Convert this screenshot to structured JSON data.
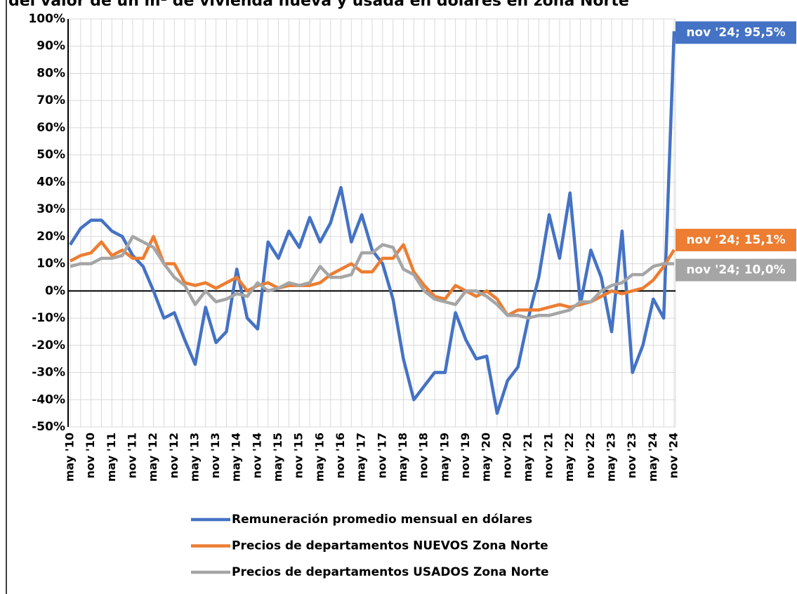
{
  "chart_data": {
    "type": "line",
    "title": "del valor de un m² de vivienda nueva y usada en dólares en zona Norte",
    "categories": [
      "may '10",
      null,
      "nov '10",
      null,
      "may '11",
      null,
      "nov '11",
      null,
      "may '12",
      null,
      "nov '12",
      null,
      "may '13",
      null,
      "nov '13",
      null,
      "may '14",
      null,
      "nov '14",
      null,
      "may '15",
      null,
      "nov '15",
      null,
      "may '16",
      null,
      "nov '16",
      null,
      "may '17",
      null,
      "nov '17",
      null,
      "may '18",
      null,
      "nov '18",
      null,
      "may '19",
      null,
      "nov '19",
      null,
      "may '20",
      null,
      "nov '20",
      null,
      "may '21",
      null,
      "nov '21",
      null,
      "may '22",
      null,
      "nov '22",
      null,
      "may '23",
      null,
      "nov '23",
      null,
      "may '24",
      null,
      "nov '24"
    ],
    "series": [
      {
        "name": "Remuneración promedio mensual en dólares",
        "color": "#4472c4",
        "values": [
          17,
          23,
          26,
          26,
          22,
          20,
          13,
          9,
          0,
          -10,
          -8,
          -18,
          -27,
          -6,
          -19,
          -15,
          8,
          -10,
          -14,
          18,
          12,
          22,
          16,
          27,
          18,
          25,
          38,
          18,
          28,
          15,
          10,
          -3,
          -25,
          -40,
          -35,
          -30,
          -30,
          -8,
          -18,
          -25,
          -24,
          -45,
          -33,
          -28,
          -10,
          5,
          28,
          12,
          36,
          -5,
          15,
          5,
          -15,
          22,
          -30,
          -20,
          -3,
          -10,
          95.5
        ],
        "value_labels": [
          null,
          null,
          null,
          null,
          null,
          null,
          null,
          null,
          null,
          null,
          null,
          null,
          null,
          null,
          null,
          null,
          null,
          null,
          null,
          null,
          null,
          null,
          null,
          null,
          null,
          null,
          null,
          null,
          null,
          null,
          null,
          null,
          null,
          null,
          null,
          null,
          null,
          null,
          null,
          null,
          null,
          null,
          null,
          null,
          null,
          null,
          null,
          null,
          null,
          null,
          null,
          null,
          null,
          null,
          null,
          null,
          null,
          null,
          "nov '24; 95,5%"
        ]
      },
      {
        "name": "Precios de departamentos NUEVOS Zona Norte",
        "color": "#ed7d31",
        "values": [
          11,
          13,
          14,
          18,
          13,
          15,
          12,
          12,
          20,
          10,
          10,
          3,
          2,
          3,
          1,
          3,
          5,
          0,
          2,
          3,
          1,
          2,
          2,
          2,
          3,
          6,
          8,
          10,
          7,
          7,
          12,
          12,
          17,
          7,
          2,
          -2,
          -3,
          2,
          0,
          -2,
          0,
          -3,
          -9,
          -7,
          -7,
          -7,
          -6,
          -5,
          -6,
          -5,
          -4,
          -2,
          0,
          -1,
          0,
          1,
          4,
          9,
          15.1
        ],
        "value_labels": [
          null,
          null,
          null,
          null,
          null,
          null,
          null,
          null,
          null,
          null,
          null,
          null,
          null,
          null,
          null,
          null,
          null,
          null,
          null,
          null,
          null,
          null,
          null,
          null,
          null,
          null,
          null,
          null,
          null,
          null,
          null,
          null,
          null,
          null,
          null,
          null,
          null,
          null,
          null,
          null,
          null,
          null,
          null,
          null,
          null,
          null,
          null,
          null,
          null,
          null,
          null,
          null,
          null,
          null,
          null,
          null,
          null,
          null,
          "nov '24; 15,1%"
        ]
      },
      {
        "name": "Precios de departamentos USADOS Zona Norte",
        "color": "#a5a5a5",
        "values": [
          9,
          10,
          10,
          12,
          12,
          13,
          20,
          18,
          16,
          10,
          5,
          2,
          -5,
          0,
          -4,
          -3,
          -1,
          -2,
          3,
          0,
          1,
          3,
          2,
          3,
          9,
          5,
          5,
          6,
          14,
          14,
          17,
          16,
          8,
          6,
          0,
          -3,
          -4,
          -5,
          0,
          0,
          -2,
          -5,
          -9,
          -9,
          -10,
          -9,
          -9,
          -8,
          -7,
          -4,
          -4,
          0,
          2,
          3,
          6,
          6,
          9,
          10,
          10.0
        ],
        "value_labels": [
          null,
          null,
          null,
          null,
          null,
          null,
          null,
          null,
          null,
          null,
          null,
          null,
          null,
          null,
          null,
          null,
          null,
          null,
          null,
          null,
          null,
          null,
          null,
          null,
          null,
          null,
          null,
          null,
          null,
          null,
          null,
          null,
          null,
          null,
          null,
          null,
          null,
          null,
          null,
          null,
          null,
          null,
          null,
          null,
          null,
          null,
          null,
          null,
          null,
          null,
          null,
          null,
          null,
          null,
          null,
          null,
          null,
          null,
          "nov '24; 10,0%"
        ]
      }
    ],
    "ylim": [
      -50,
      100
    ],
    "yticks": [
      {
        "value": -50,
        "label": "-50%"
      },
      {
        "value": -40,
        "label": "-40%"
      },
      {
        "value": -30,
        "label": "-30%"
      },
      {
        "value": -20,
        "label": "-20%"
      },
      {
        "value": -10,
        "label": "-10%"
      },
      {
        "value": 0,
        "label": "0%"
      },
      {
        "value": 10,
        "label": "10%"
      },
      {
        "value": 20,
        "label": "20%"
      },
      {
        "value": 30,
        "label": "30%"
      },
      {
        "value": 40,
        "label": "40%"
      },
      {
        "value": 50,
        "label": "50%"
      },
      {
        "value": 60,
        "label": "60%"
      },
      {
        "value": 70,
        "label": "70%"
      },
      {
        "value": 80,
        "label": "80%"
      },
      {
        "value": 90,
        "label": "90%"
      },
      {
        "value": 100,
        "label": "100%"
      }
    ],
    "grid": true
  }
}
